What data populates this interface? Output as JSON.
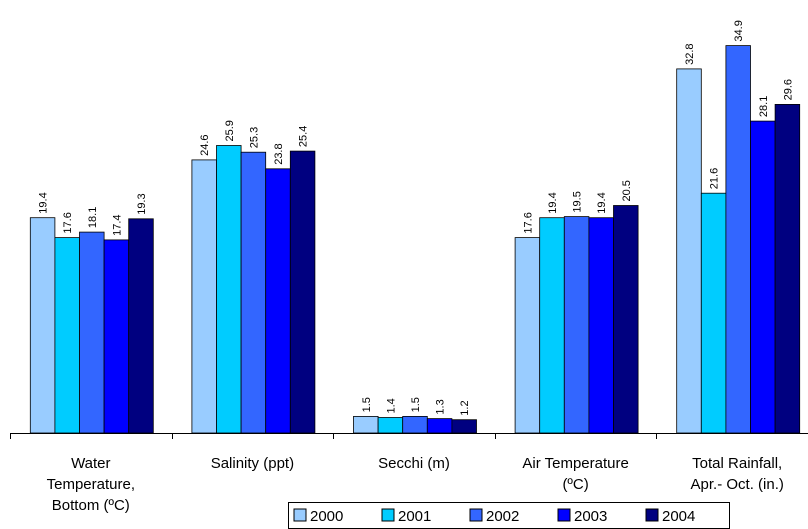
{
  "chart_data": {
    "type": "bar",
    "categories": [
      [
        "Water",
        "Temperature,",
        "Bottom (ºC)"
      ],
      [
        "Salinity (ppt)"
      ],
      [
        "Secchi (m)"
      ],
      [
        "Air Temperature",
        "(ºC)"
      ],
      [
        "Total Rainfall,",
        "Apr.- Oct. (in.)"
      ]
    ],
    "series": [
      {
        "name": "2000",
        "values": [
          19.4,
          24.6,
          1.5,
          17.6,
          32.8
        ]
      },
      {
        "name": "2001",
        "values": [
          17.6,
          25.9,
          1.4,
          19.4,
          21.6
        ]
      },
      {
        "name": "2002",
        "values": [
          18.1,
          25.3,
          1.5,
          19.5,
          34.9
        ]
      },
      {
        "name": "2003",
        "values": [
          17.4,
          23.8,
          1.3,
          19.4,
          28.1
        ]
      },
      {
        "name": "2004",
        "values": [
          19.3,
          25.4,
          1.2,
          20.5,
          29.6
        ]
      }
    ],
    "value_labels": [
      [
        "19.4",
        "24.6",
        "1.5",
        "17.6",
        "32.8"
      ],
      [
        "17.6",
        "25.9",
        "1.4",
        "19.4",
        "21.6"
      ],
      [
        "18.1",
        "25.3",
        "1.5",
        "19.5",
        "34.9"
      ],
      [
        "17.4",
        "23.8",
        "1.3",
        "19.4",
        "28.1"
      ],
      [
        "19.3",
        "25.4",
        "1.2",
        "20.5",
        "29.6"
      ]
    ],
    "series_colors": [
      "#99CCFF",
      "#00CCFF",
      "#3366FF",
      "#0000FF",
      "#000080"
    ],
    "ylim": [
      0,
      37
    ],
    "grid": false,
    "legend_position": "bottom-center",
    "title": "",
    "xlabel": "",
    "ylabel": ""
  }
}
